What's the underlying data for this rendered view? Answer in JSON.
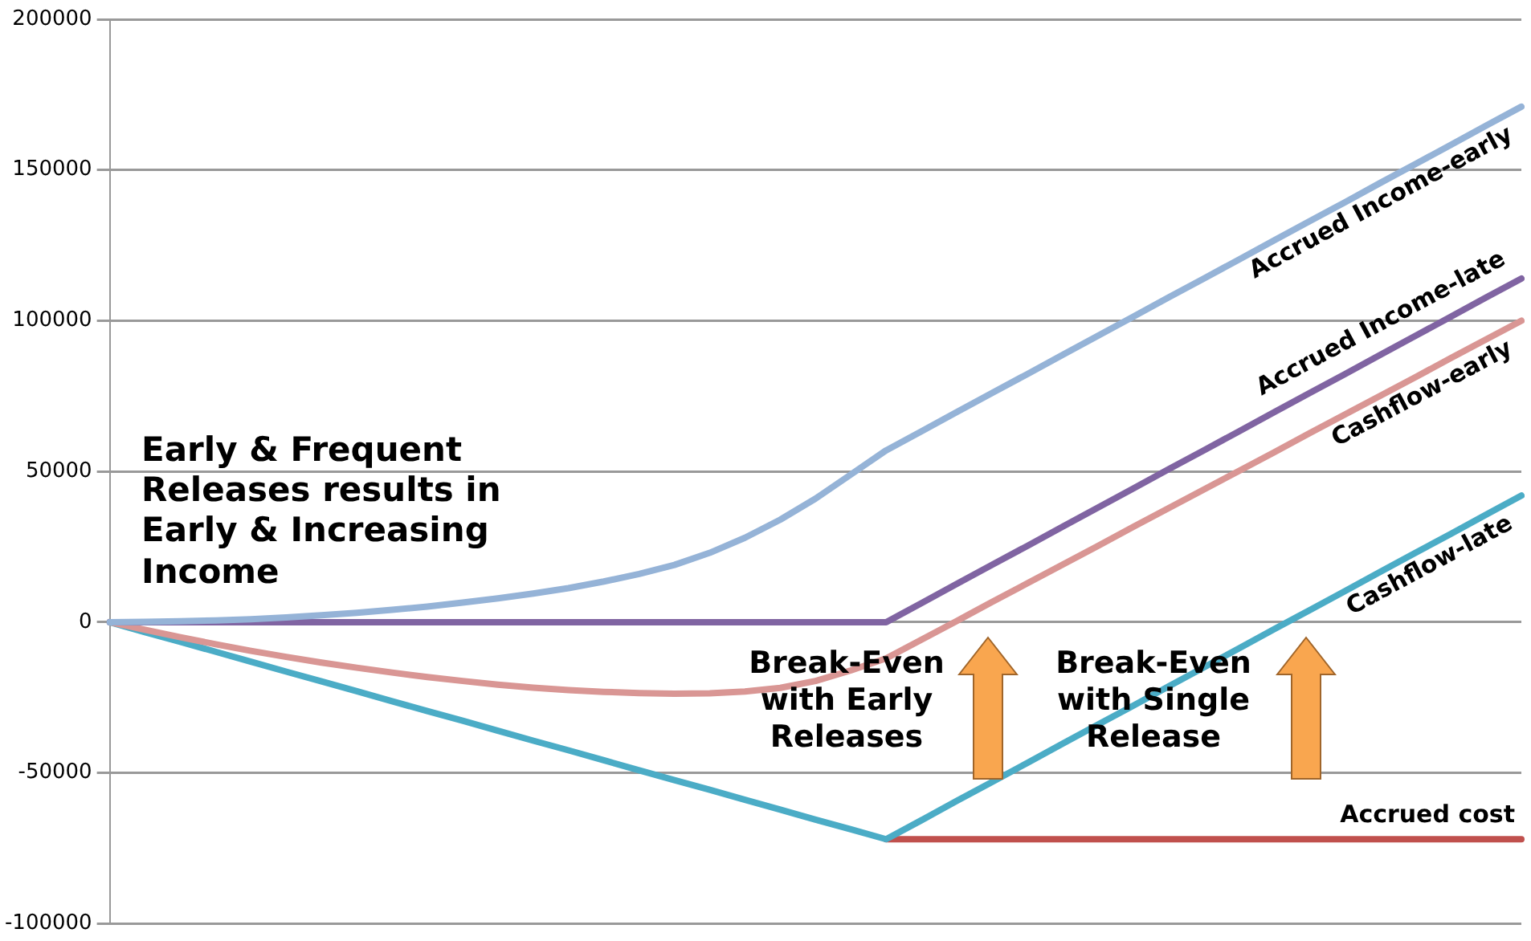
{
  "chart_data": {
    "type": "line",
    "categories": [
      null,
      null,
      null,
      null,
      null,
      null,
      null,
      null,
      null,
      null,
      null,
      null,
      null,
      null,
      null,
      null,
      null,
      null,
      null,
      null,
      null,
      null,
      null,
      null,
      null,
      null,
      null,
      null,
      null,
      null,
      null,
      null,
      null,
      null,
      null,
      null,
      null,
      null,
      null,
      null,
      null
    ],
    "series": [
      {
        "name": "Accrued Income-early",
        "color": "#95b3d7",
        "values": [
          0,
          100,
          300,
          600,
          1000,
          1600,
          2300,
          3100,
          4100,
          5200,
          6500,
          7900,
          9500,
          11300,
          13500,
          16000,
          19000,
          23000,
          28000,
          34000,
          41000,
          49000,
          57000,
          63300,
          69700,
          76000,
          82300,
          88700,
          95000,
          101300,
          107700,
          114000,
          120300,
          126700,
          133000,
          139300,
          145700,
          152000,
          158300,
          164700,
          171000
        ]
      },
      {
        "name": "Accrued Income-late",
        "color": "#8064a2",
        "values": [
          0,
          0,
          0,
          0,
          0,
          0,
          0,
          0,
          0,
          0,
          0,
          0,
          0,
          0,
          0,
          0,
          0,
          0,
          0,
          0,
          0,
          0,
          0,
          6300,
          12700,
          19000,
          25300,
          31700,
          38000,
          44300,
          50700,
          57000,
          63300,
          69700,
          76000,
          82300,
          88700,
          95000,
          101300,
          107700,
          114000
        ]
      },
      {
        "name": "Cashflow-early",
        "color": "#d99694",
        "values": [
          0,
          -2500,
          -5000,
          -7300,
          -9500,
          -11500,
          -13400,
          -15100,
          -16700,
          -18200,
          -19500,
          -20700,
          -21700,
          -22500,
          -23100,
          -23500,
          -23700,
          -23600,
          -23000,
          -21800,
          -19500,
          -16000,
          -12000,
          -5800,
          400,
          6700,
          12900,
          19100,
          25300,
          31600,
          37800,
          44000,
          50200,
          56400,
          62700,
          68900,
          75100,
          81300,
          87600,
          93800,
          100000
        ]
      },
      {
        "name": "Cashflow-late",
        "color": "#4bacc6",
        "values": [
          0,
          -3300,
          -6500,
          -9800,
          -13100,
          -16400,
          -19600,
          -22900,
          -26200,
          -29500,
          -32700,
          -36000,
          -39300,
          -42500,
          -45800,
          -49100,
          -52400,
          -55600,
          -58900,
          -62200,
          -65500,
          -68700,
          -72000,
          -65700,
          -59300,
          -53000,
          -46700,
          -40300,
          -34000,
          -27700,
          -21300,
          -15000,
          -8700,
          -2300,
          4000,
          10300,
          16700,
          23000,
          29300,
          35700,
          42000
        ]
      },
      {
        "name": "Accrued cost",
        "color": "#c0504d",
        "values": [
          null,
          null,
          null,
          null,
          null,
          null,
          null,
          null,
          null,
          null,
          null,
          null,
          null,
          null,
          null,
          null,
          null,
          null,
          null,
          null,
          null,
          null,
          -72000,
          -72000,
          -72000,
          -72000,
          -72000,
          -72000,
          -72000,
          -72000,
          -72000,
          -72000,
          -72000,
          -72000,
          -72000,
          -72000,
          -72000,
          -72000,
          -72000,
          -72000,
          -72000
        ]
      }
    ],
    "ylim": [
      -100000,
      200000
    ],
    "yticks": [
      -100000,
      -50000,
      0,
      50000,
      100000,
      150000,
      200000
    ],
    "grid": "y",
    "legend": false,
    "marker": "none",
    "line_style": "solid",
    "tick_labels": "y",
    "annotations": [
      "Early & Frequent Releases results in Early & Increasing Income",
      "Break-Even with Early Releases",
      "Break-Even with Single Release"
    ]
  }
}
